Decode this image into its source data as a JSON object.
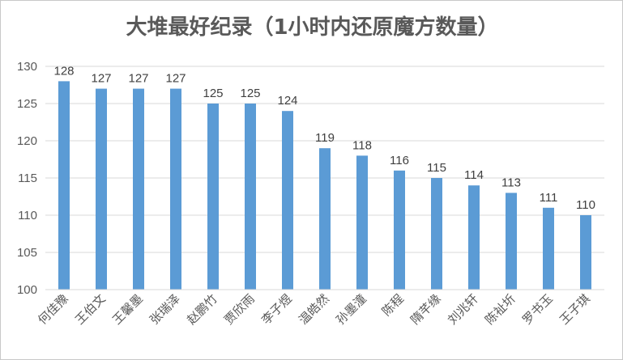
{
  "chart_data": {
    "type": "bar",
    "title": "大堆最好纪录（1小时内还原魔方数量）",
    "xlabel": "",
    "ylabel": "",
    "ylim": [
      100,
      130
    ],
    "yticks": [
      100,
      105,
      110,
      115,
      120,
      125,
      130
    ],
    "grid": true,
    "legend": "none",
    "bar_color": "#5b9bd5",
    "categories": [
      "何佳豫",
      "王伯文",
      "王馨墨",
      "张瑞泽",
      "赵鹏竹",
      "贾欣雨",
      "李子煜",
      "温皓然",
      "孙墨潼",
      "陈程",
      "隋芊缘",
      "刘兆轩",
      "陈祉圻",
      "罗书玉",
      "王子琪"
    ],
    "values": [
      128,
      127,
      127,
      127,
      125,
      125,
      124,
      119,
      118,
      116,
      115,
      114,
      113,
      111,
      110
    ]
  }
}
